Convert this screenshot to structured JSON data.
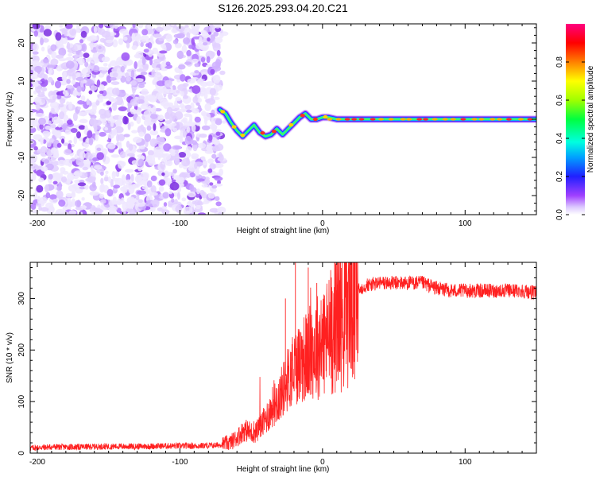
{
  "figure_title": "S126.2025.293.04.20.C21",
  "chart_data": [
    {
      "type": "heatmap",
      "title": "S126.2025.293.04.20.C21",
      "xlabel": "Height of straight line (km)",
      "ylabel": "Frequency (Hz)",
      "xlim": [
        -205,
        150
      ],
      "ylim": [
        -25,
        25
      ],
      "xticks": [
        -200,
        -100,
        0,
        100
      ],
      "yticks": [
        -20,
        -10,
        0,
        10,
        20
      ],
      "noise_region": [
        -205,
        -72
      ],
      "ridge_centre_freq_points": [
        [
          -72,
          2.5
        ],
        [
          -68,
          1.5
        ],
        [
          -64,
          -1
        ],
        [
          -60,
          -3
        ],
        [
          -56,
          -4.5
        ],
        [
          -52,
          -3
        ],
        [
          -48,
          -1.5
        ],
        [
          -44,
          -3.5
        ],
        [
          -40,
          -4.5
        ],
        [
          -36,
          -4
        ],
        [
          -32,
          -2.5
        ],
        [
          -28,
          -4
        ],
        [
          -24,
          -2.5
        ],
        [
          -20,
          -1
        ],
        [
          -16,
          0.5
        ],
        [
          -12,
          1.5
        ],
        [
          -8,
          0
        ],
        [
          -4,
          0
        ],
        [
          0,
          0.5
        ],
        [
          4,
          0.5
        ],
        [
          10,
          0
        ],
        [
          50,
          0
        ],
        [
          100,
          0
        ],
        [
          150,
          0
        ]
      ],
      "colorbar": {
        "label": "Normalized spectral amplitude",
        "range": [
          0,
          1
        ],
        "ticks": [
          "0.0",
          "0.2",
          "0.4",
          "0.6",
          "0.8"
        ],
        "tick_values": [
          0,
          0.2,
          0.4,
          0.6,
          0.8
        ]
      }
    },
    {
      "type": "line",
      "xlabel": "Height of straight line (km)",
      "ylabel": "SNR (10 * v/v)",
      "xlim": [
        -205,
        150
      ],
      "ylim": [
        0,
        370
      ],
      "xticks": [
        -200,
        -100,
        0,
        100
      ],
      "yticks": [
        0,
        100,
        200,
        300
      ],
      "series_color": "#ff2020",
      "series": [
        {
          "name": "SNR",
          "x": [
            -205,
            -190,
            -170,
            -150,
            -130,
            -110,
            -90,
            -75,
            -65,
            -60,
            -55,
            -50,
            -45,
            -40,
            -35,
            -30,
            -25,
            -20,
            -15,
            -10,
            -5,
            0,
            5,
            10,
            15,
            20,
            25,
            30,
            40,
            50,
            60,
            70,
            80,
            90,
            100,
            110,
            120,
            130,
            140,
            150
          ],
          "y": [
            10,
            12,
            12,
            13,
            13,
            14,
            14,
            15,
            20,
            30,
            45,
            40,
            45,
            65,
            90,
            110,
            140,
            165,
            180,
            190,
            205,
            215,
            230,
            260,
            275,
            300,
            315,
            325,
            330,
            330,
            330,
            330,
            320,
            315,
            315,
            315,
            315,
            315,
            315,
            310
          ]
        }
      ]
    }
  ]
}
